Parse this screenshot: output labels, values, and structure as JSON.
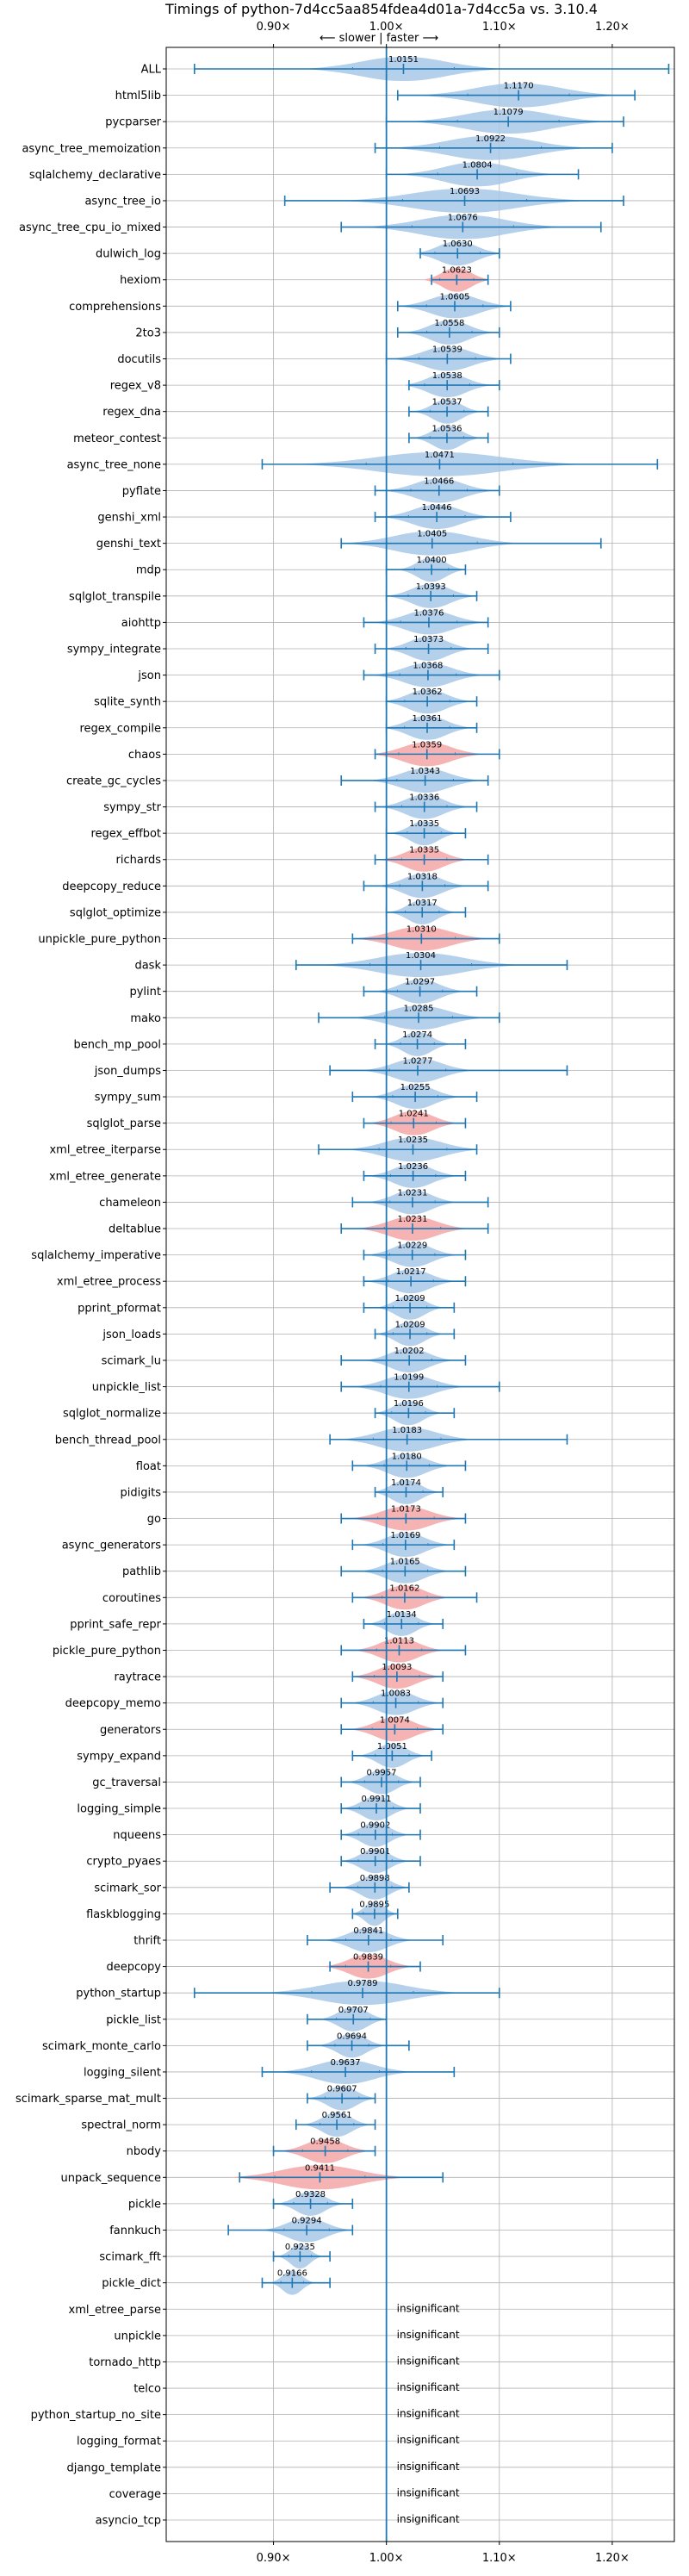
{
  "chart_data": {
    "type": "violin",
    "title": "Timings of python-7d4cc5aa854fdea4d01a-7d4cc5a vs. 3.10.4",
    "direction_hint": {
      "left": "slower",
      "sep": "|",
      "right": "faster",
      "arrow_left": "⟵",
      "arrow_right": "⟶"
    },
    "x_ticks": [
      "0.90×",
      "1.00×",
      "1.10×",
      "1.20×"
    ],
    "x_tick_values": [
      0.9,
      1.0,
      1.1,
      1.2
    ],
    "xlim": [
      0.805,
      1.255
    ],
    "reference_line": 1.0,
    "grid": true,
    "colors": {
      "faster": "#a8c8e8",
      "slower": "#f4a6a6",
      "line": "#1f77b4",
      "grid": "#b0b0b0"
    },
    "insignificant_label": "insignificant",
    "benchmarks": [
      {
        "name": "ALL",
        "value": 1.0151,
        "label": "1.0151",
        "min": 0.83,
        "max": 1.25,
        "spread": 0.09,
        "slower": false
      },
      {
        "name": "html5lib",
        "value": 1.117,
        "label": "1.1170",
        "min": 1.01,
        "max": 1.22,
        "spread": 0.09,
        "slower": false
      },
      {
        "name": "pycparser",
        "value": 1.1079,
        "label": "1.1079",
        "min": 1.0,
        "max": 1.21,
        "spread": 0.09,
        "slower": false
      },
      {
        "name": "async_tree_memoization",
        "value": 1.0922,
        "label": "1.0922",
        "min": 0.99,
        "max": 1.2,
        "spread": 0.09,
        "slower": false
      },
      {
        "name": "sqlalchemy_declarative",
        "value": 1.0804,
        "label": "1.0804",
        "min": 1.0,
        "max": 1.17,
        "spread": 0.07,
        "slower": false
      },
      {
        "name": "async_tree_io",
        "value": 1.0693,
        "label": "1.0693",
        "min": 0.91,
        "max": 1.21,
        "spread": 0.11,
        "slower": false
      },
      {
        "name": "async_tree_cpu_io_mixed",
        "value": 1.0676,
        "label": "1.0676",
        "min": 0.96,
        "max": 1.19,
        "spread": 0.09,
        "slower": false
      },
      {
        "name": "dulwich_log",
        "value": 1.063,
        "label": "1.0630",
        "min": 1.03,
        "max": 1.1,
        "spread": 0.04,
        "slower": false
      },
      {
        "name": "hexiom",
        "value": 1.0623,
        "label": "1.0623",
        "min": 1.04,
        "max": 1.09,
        "spread": 0.03,
        "slower": true
      },
      {
        "name": "comprehensions",
        "value": 1.0605,
        "label": "1.0605",
        "min": 1.01,
        "max": 1.11,
        "spread": 0.05,
        "slower": false
      },
      {
        "name": "2to3",
        "value": 1.0558,
        "label": "1.0558",
        "min": 1.01,
        "max": 1.1,
        "spread": 0.04,
        "slower": false
      },
      {
        "name": "docutils",
        "value": 1.0539,
        "label": "1.0539",
        "min": 1.0,
        "max": 1.11,
        "spread": 0.05,
        "slower": false
      },
      {
        "name": "regex_v8",
        "value": 1.0538,
        "label": "1.0538",
        "min": 1.02,
        "max": 1.1,
        "spread": 0.04,
        "slower": false
      },
      {
        "name": "regex_dna",
        "value": 1.0537,
        "label": "1.0537",
        "min": 1.02,
        "max": 1.09,
        "spread": 0.03,
        "slower": false
      },
      {
        "name": "meteor_contest",
        "value": 1.0536,
        "label": "1.0536",
        "min": 1.02,
        "max": 1.09,
        "spread": 0.03,
        "slower": false
      },
      {
        "name": "async_tree_none",
        "value": 1.0471,
        "label": "1.0471",
        "min": 0.89,
        "max": 1.24,
        "spread": 0.13,
        "slower": false
      },
      {
        "name": "pyflate",
        "value": 1.0466,
        "label": "1.0466",
        "min": 0.99,
        "max": 1.1,
        "spread": 0.05,
        "slower": false
      },
      {
        "name": "genshi_xml",
        "value": 1.0446,
        "label": "1.0446",
        "min": 0.99,
        "max": 1.11,
        "spread": 0.05,
        "slower": false
      },
      {
        "name": "genshi_text",
        "value": 1.0405,
        "label": "1.0405",
        "min": 0.96,
        "max": 1.19,
        "spread": 0.08,
        "slower": false
      },
      {
        "name": "mdp",
        "value": 1.04,
        "label": "1.0400",
        "min": 1.0,
        "max": 1.07,
        "spread": 0.03,
        "slower": false
      },
      {
        "name": "sqlglot_transpile",
        "value": 1.0393,
        "label": "1.0393",
        "min": 1.0,
        "max": 1.08,
        "spread": 0.04,
        "slower": false
      },
      {
        "name": "aiohttp",
        "value": 1.0376,
        "label": "1.0376",
        "min": 0.98,
        "max": 1.09,
        "spread": 0.05,
        "slower": false
      },
      {
        "name": "sympy_integrate",
        "value": 1.0373,
        "label": "1.0373",
        "min": 0.99,
        "max": 1.09,
        "spread": 0.04,
        "slower": false
      },
      {
        "name": "json",
        "value": 1.0368,
        "label": "1.0368",
        "min": 0.98,
        "max": 1.1,
        "spread": 0.05,
        "slower": false
      },
      {
        "name": "sqlite_synth",
        "value": 1.0362,
        "label": "1.0362",
        "min": 1.0,
        "max": 1.08,
        "spread": 0.04,
        "slower": false
      },
      {
        "name": "regex_compile",
        "value": 1.0361,
        "label": "1.0361",
        "min": 1.0,
        "max": 1.08,
        "spread": 0.04,
        "slower": false
      },
      {
        "name": "chaos",
        "value": 1.0359,
        "label": "1.0359",
        "min": 0.99,
        "max": 1.1,
        "spread": 0.05,
        "slower": true
      },
      {
        "name": "create_gc_cycles",
        "value": 1.0343,
        "label": "1.0343",
        "min": 0.96,
        "max": 1.09,
        "spread": 0.05,
        "slower": false
      },
      {
        "name": "sympy_str",
        "value": 1.0336,
        "label": "1.0336",
        "min": 0.99,
        "max": 1.08,
        "spread": 0.04,
        "slower": false
      },
      {
        "name": "regex_effbot",
        "value": 1.0335,
        "label": "1.0335",
        "min": 1.0,
        "max": 1.07,
        "spread": 0.03,
        "slower": false
      },
      {
        "name": "richards",
        "value": 1.0335,
        "label": "1.0335",
        "min": 0.99,
        "max": 1.09,
        "spread": 0.04,
        "slower": true
      },
      {
        "name": "deepcopy_reduce",
        "value": 1.0318,
        "label": "1.0318",
        "min": 0.98,
        "max": 1.09,
        "spread": 0.04,
        "slower": false
      },
      {
        "name": "sqlglot_optimize",
        "value": 1.0317,
        "label": "1.0317",
        "min": 1.0,
        "max": 1.07,
        "spread": 0.03,
        "slower": false
      },
      {
        "name": "unpickle_pure_python",
        "value": 1.031,
        "label": "1.0310",
        "min": 0.97,
        "max": 1.1,
        "spread": 0.06,
        "slower": true
      },
      {
        "name": "dask",
        "value": 1.0304,
        "label": "1.0304",
        "min": 0.92,
        "max": 1.16,
        "spread": 0.09,
        "slower": false
      },
      {
        "name": "pylint",
        "value": 1.0297,
        "label": "1.0297",
        "min": 0.98,
        "max": 1.08,
        "spread": 0.04,
        "slower": false
      },
      {
        "name": "mako",
        "value": 1.0285,
        "label": "1.0285",
        "min": 0.94,
        "max": 1.1,
        "spread": 0.06,
        "slower": false
      },
      {
        "name": "bench_mp_pool",
        "value": 1.0274,
        "label": "1.0274",
        "min": 0.99,
        "max": 1.07,
        "spread": 0.03,
        "slower": false
      },
      {
        "name": "json_dumps",
        "value": 1.0277,
        "label": "1.0277",
        "min": 0.95,
        "max": 1.16,
        "spread": 0.05,
        "slower": false
      },
      {
        "name": "sympy_sum",
        "value": 1.0255,
        "label": "1.0255",
        "min": 0.97,
        "max": 1.08,
        "spread": 0.04,
        "slower": false
      },
      {
        "name": "sqlglot_parse",
        "value": 1.0241,
        "label": "1.0241",
        "min": 0.98,
        "max": 1.07,
        "spread": 0.04,
        "slower": true
      },
      {
        "name": "xml_etree_iterparse",
        "value": 1.0235,
        "label": "1.0235",
        "min": 0.94,
        "max": 1.08,
        "spread": 0.06,
        "slower": false
      },
      {
        "name": "xml_etree_generate",
        "value": 1.0236,
        "label": "1.0236",
        "min": 0.98,
        "max": 1.07,
        "spread": 0.04,
        "slower": false
      },
      {
        "name": "chameleon",
        "value": 1.0231,
        "label": "1.0231",
        "min": 0.97,
        "max": 1.09,
        "spread": 0.04,
        "slower": false
      },
      {
        "name": "deltablue",
        "value": 1.0231,
        "label": "1.0231",
        "min": 0.96,
        "max": 1.09,
        "spread": 0.05,
        "slower": true
      },
      {
        "name": "sqlalchemy_imperative",
        "value": 1.0229,
        "label": "1.0229",
        "min": 0.98,
        "max": 1.07,
        "spread": 0.04,
        "slower": false
      },
      {
        "name": "xml_etree_process",
        "value": 1.0217,
        "label": "1.0217",
        "min": 0.98,
        "max": 1.07,
        "spread": 0.04,
        "slower": false
      },
      {
        "name": "pprint_pformat",
        "value": 1.0209,
        "label": "1.0209",
        "min": 0.98,
        "max": 1.06,
        "spread": 0.03,
        "slower": false
      },
      {
        "name": "json_loads",
        "value": 1.0209,
        "label": "1.0209",
        "min": 0.99,
        "max": 1.06,
        "spread": 0.03,
        "slower": false
      },
      {
        "name": "scimark_lu",
        "value": 1.0202,
        "label": "1.0202",
        "min": 0.96,
        "max": 1.07,
        "spread": 0.04,
        "slower": false
      },
      {
        "name": "unpickle_list",
        "value": 1.0199,
        "label": "1.0199",
        "min": 0.96,
        "max": 1.1,
        "spread": 0.05,
        "slower": false
      },
      {
        "name": "sqlglot_normalize",
        "value": 1.0196,
        "label": "1.0196",
        "min": 0.99,
        "max": 1.06,
        "spread": 0.03,
        "slower": false
      },
      {
        "name": "bench_thread_pool",
        "value": 1.0183,
        "label": "1.0183",
        "min": 0.95,
        "max": 1.16,
        "spread": 0.06,
        "slower": false
      },
      {
        "name": "float",
        "value": 1.018,
        "label": "1.0180",
        "min": 0.97,
        "max": 1.07,
        "spread": 0.04,
        "slower": false
      },
      {
        "name": "pidigits",
        "value": 1.0174,
        "label": "1.0174",
        "min": 0.99,
        "max": 1.05,
        "spread": 0.03,
        "slower": false
      },
      {
        "name": "go",
        "value": 1.0173,
        "label": "1.0173",
        "min": 0.96,
        "max": 1.07,
        "spread": 0.05,
        "slower": true
      },
      {
        "name": "async_generators",
        "value": 1.0169,
        "label": "1.0169",
        "min": 0.97,
        "max": 1.06,
        "spread": 0.04,
        "slower": false
      },
      {
        "name": "pathlib",
        "value": 1.0165,
        "label": "1.0165",
        "min": 0.96,
        "max": 1.07,
        "spread": 0.04,
        "slower": false
      },
      {
        "name": "coroutines",
        "value": 1.0162,
        "label": "1.0162",
        "min": 0.97,
        "max": 1.08,
        "spread": 0.04,
        "slower": true
      },
      {
        "name": "pprint_safe_repr",
        "value": 1.0134,
        "label": "1.0134",
        "min": 0.98,
        "max": 1.05,
        "spread": 0.03,
        "slower": false
      },
      {
        "name": "pickle_pure_python",
        "value": 1.0113,
        "label": "1.0113",
        "min": 0.96,
        "max": 1.07,
        "spread": 0.04,
        "slower": true
      },
      {
        "name": "raytrace",
        "value": 1.0093,
        "label": "1.0093",
        "min": 0.97,
        "max": 1.05,
        "spread": 0.04,
        "slower": true
      },
      {
        "name": "deepcopy_memo",
        "value": 1.0083,
        "label": "1.0083",
        "min": 0.96,
        "max": 1.05,
        "spread": 0.04,
        "slower": false
      },
      {
        "name": "generators",
        "value": 1.0074,
        "label": "1.0074",
        "min": 0.96,
        "max": 1.05,
        "spread": 0.04,
        "slower": true
      },
      {
        "name": "sympy_expand",
        "value": 1.0051,
        "label": "1.0051",
        "min": 0.97,
        "max": 1.04,
        "spread": 0.03,
        "slower": false
      },
      {
        "name": "gc_traversal",
        "value": 0.9957,
        "label": "0.9957",
        "min": 0.96,
        "max": 1.03,
        "spread": 0.03,
        "slower": false
      },
      {
        "name": "logging_simple",
        "value": 0.9911,
        "label": "0.9911",
        "min": 0.96,
        "max": 1.03,
        "spread": 0.03,
        "slower": false
      },
      {
        "name": "nqueens",
        "value": 0.9902,
        "label": "0.9902",
        "min": 0.96,
        "max": 1.03,
        "spread": 0.03,
        "slower": false
      },
      {
        "name": "crypto_pyaes",
        "value": 0.9901,
        "label": "0.9901",
        "min": 0.96,
        "max": 1.03,
        "spread": 0.03,
        "slower": false
      },
      {
        "name": "scimark_sor",
        "value": 0.9898,
        "label": "0.9898",
        "min": 0.95,
        "max": 1.02,
        "spread": 0.03,
        "slower": false
      },
      {
        "name": "flaskblogging",
        "value": 0.9895,
        "label": "0.9895",
        "min": 0.97,
        "max": 1.01,
        "spread": 0.02,
        "slower": false
      },
      {
        "name": "thrift",
        "value": 0.9841,
        "label": "0.9841",
        "min": 0.93,
        "max": 1.05,
        "spread": 0.04,
        "slower": false
      },
      {
        "name": "deepcopy",
        "value": 0.9839,
        "label": "0.9839",
        "min": 0.95,
        "max": 1.03,
        "spread": 0.04,
        "slower": true
      },
      {
        "name": "python_startup",
        "value": 0.9789,
        "label": "0.9789",
        "min": 0.83,
        "max": 1.1,
        "spread": 0.09,
        "slower": false
      },
      {
        "name": "pickle_list",
        "value": 0.9707,
        "label": "0.9707",
        "min": 0.93,
        "max": 1.0,
        "spread": 0.03,
        "slower": false
      },
      {
        "name": "scimark_monte_carlo",
        "value": 0.9694,
        "label": "0.9694",
        "min": 0.93,
        "max": 1.02,
        "spread": 0.03,
        "slower": false
      },
      {
        "name": "logging_silent",
        "value": 0.9637,
        "label": "0.9637",
        "min": 0.89,
        "max": 1.06,
        "spread": 0.06,
        "slower": false
      },
      {
        "name": "scimark_sparse_mat_mult",
        "value": 0.9607,
        "label": "0.9607",
        "min": 0.93,
        "max": 0.99,
        "spread": 0.03,
        "slower": false
      },
      {
        "name": "spectral_norm",
        "value": 0.9561,
        "label": "0.9561",
        "min": 0.92,
        "max": 0.99,
        "spread": 0.03,
        "slower": false
      },
      {
        "name": "nbody",
        "value": 0.9458,
        "label": "0.9458",
        "min": 0.9,
        "max": 0.99,
        "spread": 0.04,
        "slower": true
      },
      {
        "name": "unpack_sequence",
        "value": 0.9411,
        "label": "0.9411",
        "min": 0.87,
        "max": 1.05,
        "spread": 0.08,
        "slower": true
      },
      {
        "name": "pickle",
        "value": 0.9328,
        "label": "0.9328",
        "min": 0.9,
        "max": 0.97,
        "spread": 0.03,
        "slower": false
      },
      {
        "name": "fannkuch",
        "value": 0.9294,
        "label": "0.9294",
        "min": 0.86,
        "max": 0.97,
        "spread": 0.04,
        "slower": false
      },
      {
        "name": "scimark_fft",
        "value": 0.9235,
        "label": "0.9235",
        "min": 0.9,
        "max": 0.95,
        "spread": 0.02,
        "slower": false
      },
      {
        "name": "pickle_dict",
        "value": 0.9166,
        "label": "0.9166",
        "min": 0.89,
        "max": 0.95,
        "spread": 0.02,
        "slower": false
      },
      {
        "name": "xml_etree_parse",
        "value": null,
        "label": "insignificant"
      },
      {
        "name": "unpickle",
        "value": null,
        "label": "insignificant"
      },
      {
        "name": "tornado_http",
        "value": null,
        "label": "insignificant"
      },
      {
        "name": "telco",
        "value": null,
        "label": "insignificant"
      },
      {
        "name": "python_startup_no_site",
        "value": null,
        "label": "insignificant"
      },
      {
        "name": "logging_format",
        "value": null,
        "label": "insignificant"
      },
      {
        "name": "django_template",
        "value": null,
        "label": "insignificant"
      },
      {
        "name": "coverage",
        "value": null,
        "label": "insignificant"
      },
      {
        "name": "asyncio_tcp",
        "value": null,
        "label": "insignificant"
      }
    ]
  }
}
